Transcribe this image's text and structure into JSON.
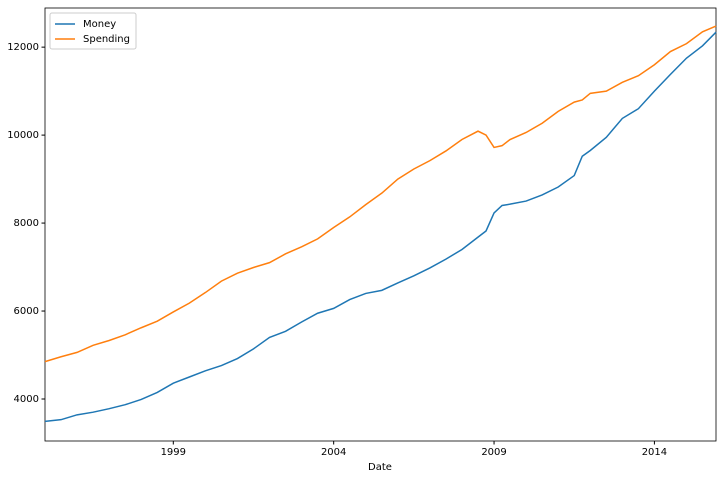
{
  "chart_data": {
    "type": "line",
    "x_label": "Date",
    "x": [
      1995,
      1995.5,
      1996,
      1996.5,
      1997,
      1997.5,
      1998,
      1998.5,
      1999,
      1999.5,
      2000,
      2000.5,
      2001,
      2001.5,
      2002,
      2002.5,
      2003,
      2003.5,
      2004,
      2004.5,
      2005,
      2005.5,
      2006,
      2006.5,
      2007,
      2007.5,
      2008,
      2008.5,
      2008.75,
      2009,
      2009.25,
      2009.5,
      2010,
      2010.5,
      2011,
      2011.5,
      2011.75,
      2012,
      2012.5,
      2013,
      2013.5,
      2014,
      2014.5,
      2015,
      2015.5,
      2015.92
    ],
    "series": [
      {
        "name": "Money",
        "color": "#1f77b4",
        "values": [
          3490,
          3530,
          3640,
          3700,
          3780,
          3870,
          3990,
          4150,
          4360,
          4500,
          4640,
          4760,
          4920,
          5140,
          5400,
          5540,
          5750,
          5950,
          6060,
          6260,
          6400,
          6470,
          6640,
          6800,
          6980,
          7180,
          7400,
          7680,
          7820,
          8230,
          8400,
          8430,
          8500,
          8640,
          8820,
          9080,
          9520,
          9650,
          9950,
          10380,
          10600,
          11000,
          11380,
          11750,
          12030,
          12340
        ]
      },
      {
        "name": "Spending",
        "color": "#ff7f0e",
        "values": [
          4850,
          4960,
          5060,
          5220,
          5330,
          5460,
          5620,
          5770,
          5980,
          6180,
          6420,
          6680,
          6860,
          6990,
          7100,
          7300,
          7460,
          7640,
          7900,
          8140,
          8420,
          8680,
          9000,
          9230,
          9420,
          9640,
          9900,
          10090,
          10000,
          9720,
          9760,
          9900,
          10060,
          10270,
          10540,
          10750,
          10800,
          10950,
          11000,
          11200,
          11350,
          11600,
          11900,
          12080,
          12350,
          12480
        ]
      }
    ],
    "xlim": [
      1995,
      2015.92
    ],
    "xticks": [
      1999,
      2004,
      2009,
      2014
    ],
    "ylim": [
      3045,
      12890
    ],
    "yticks": [
      4000,
      6000,
      8000,
      10000,
      12000
    ],
    "legend": "upper left",
    "grid": false
  }
}
